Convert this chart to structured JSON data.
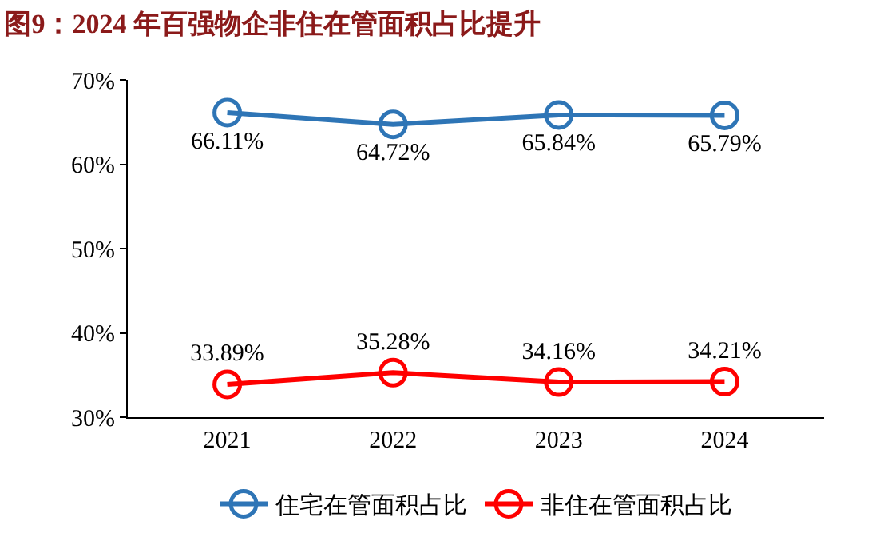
{
  "chart_data": {
    "type": "line",
    "title": "图9：2024 年百强物企非住在管面积占比提升",
    "categories": [
      "2021",
      "2022",
      "2023",
      "2024"
    ],
    "series": [
      {
        "name": "住宅在管面积占比",
        "color": "#2e75b6",
        "values": [
          66.11,
          64.72,
          65.84,
          65.79
        ],
        "value_labels": [
          "66.11%",
          "64.72%",
          "65.84%",
          "65.79%"
        ]
      },
      {
        "name": "非住在管面积占比",
        "color": "#ff0000",
        "values": [
          33.89,
          35.28,
          34.16,
          34.21
        ],
        "value_labels": [
          "33.89%",
          "35.28%",
          "34.16%",
          "34.21%"
        ]
      }
    ],
    "ylim": [
      30,
      70
    ],
    "yticks": [
      {
        "value": 30,
        "label": "30%"
      },
      {
        "value": 40,
        "label": "40%"
      },
      {
        "value": 50,
        "label": "50%"
      },
      {
        "value": 60,
        "label": "60%"
      },
      {
        "value": 70,
        "label": "70%"
      }
    ],
    "grid": false,
    "legend": "bottom",
    "marker": "circle",
    "line_style": "solid"
  }
}
